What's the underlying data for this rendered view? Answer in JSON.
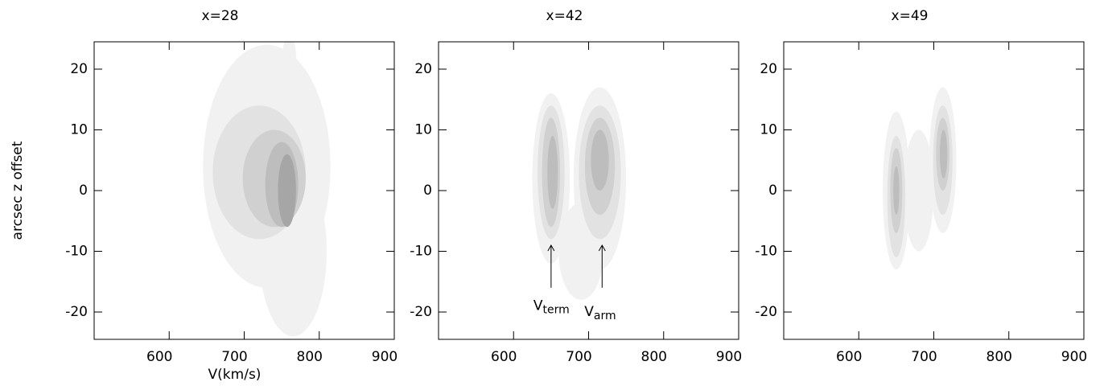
{
  "chart_data": [
    {
      "type": "contour",
      "title": "x=28",
      "xlabel": "V(km/s)",
      "ylabel": "arcsec z offset",
      "xlim": [
        500,
        900
      ],
      "ylim": [
        -24.5,
        24.5
      ],
      "xticks": [
        600,
        700,
        800,
        900
      ],
      "yticks": [
        -20,
        -10,
        0,
        10,
        20
      ],
      "levels": [
        "#f1f1f1",
        "#e2e2e2",
        "#d0d0d0",
        "#bdbdbd",
        "#a6a6a6"
      ],
      "blobs": [
        {
          "x": 730,
          "y": 4,
          "rx": 85,
          "ry": 20,
          "level": 0
        },
        {
          "x": 765,
          "y": -10,
          "rx": 45,
          "ry": 14,
          "level": 0
        },
        {
          "x": 760,
          "y": 20,
          "rx": 10,
          "ry": 6,
          "level": 0
        },
        {
          "x": 720,
          "y": 3,
          "rx": 62,
          "ry": 11,
          "level": 1
        },
        {
          "x": 740,
          "y": 2,
          "rx": 42,
          "ry": 8,
          "level": 2
        },
        {
          "x": 750,
          "y": 1,
          "rx": 22,
          "ry": 7,
          "level": 3
        },
        {
          "x": 757,
          "y": 0,
          "rx": 12,
          "ry": 6,
          "level": 4
        }
      ]
    },
    {
      "type": "contour",
      "title": "x=42",
      "xlim": [
        500,
        900
      ],
      "ylim": [
        -24.5,
        24.5
      ],
      "xticks": [
        600,
        700,
        800,
        900
      ],
      "yticks": [
        -20,
        -10,
        0,
        10,
        20
      ],
      "levels": [
        "#f1f1f1",
        "#e2e2e2",
        "#d0d0d0",
        "#bdbdbd",
        "#a6a6a6"
      ],
      "blobs": [
        {
          "x": 650,
          "y": 2,
          "rx": 25,
          "ry": 14,
          "level": 0
        },
        {
          "x": 715,
          "y": 2,
          "rx": 35,
          "ry": 15,
          "level": 0
        },
        {
          "x": 690,
          "y": -10,
          "rx": 30,
          "ry": 8,
          "level": 0
        },
        {
          "x": 650,
          "y": 3,
          "rx": 18,
          "ry": 11,
          "level": 1
        },
        {
          "x": 715,
          "y": 3,
          "rx": 28,
          "ry": 11,
          "level": 1
        },
        {
          "x": 650,
          "y": 3,
          "rx": 12,
          "ry": 9,
          "level": 2
        },
        {
          "x": 715,
          "y": 4,
          "rx": 20,
          "ry": 8,
          "level": 2
        },
        {
          "x": 652,
          "y": 3,
          "rx": 7,
          "ry": 6,
          "level": 3
        },
        {
          "x": 715,
          "y": 5,
          "rx": 12,
          "ry": 5,
          "level": 3
        }
      ],
      "annotations": [
        {
          "text": "V",
          "sub": "term",
          "x": 650,
          "y": -19,
          "arrow_from": -16,
          "arrow_to": -9
        },
        {
          "text": "V",
          "sub": "arm",
          "x": 718,
          "y": -20,
          "arrow_from": -16,
          "arrow_to": -9
        }
      ]
    },
    {
      "type": "contour",
      "title": "x=49",
      "xlim": [
        500,
        900
      ],
      "ylim": [
        -24.5,
        24.5
      ],
      "xticks": [
        600,
        700,
        800,
        900
      ],
      "yticks": [
        -20,
        -10,
        0,
        10,
        20
      ],
      "levels": [
        "#f1f1f1",
        "#e2e2e2",
        "#d0d0d0",
        "#bdbdbd",
        "#a6a6a6"
      ],
      "blobs": [
        {
          "x": 650,
          "y": 0,
          "rx": 18,
          "ry": 13,
          "level": 0
        },
        {
          "x": 712,
          "y": 5,
          "rx": 18,
          "ry": 12,
          "level": 0
        },
        {
          "x": 680,
          "y": 0,
          "rx": 20,
          "ry": 10,
          "level": 0
        },
        {
          "x": 650,
          "y": -1,
          "rx": 12,
          "ry": 10,
          "level": 1
        },
        {
          "x": 712,
          "y": 5,
          "rx": 13,
          "ry": 9,
          "level": 1
        },
        {
          "x": 650,
          "y": 0,
          "rx": 8,
          "ry": 7,
          "level": 2
        },
        {
          "x": 712,
          "y": 6,
          "rx": 9,
          "ry": 6,
          "level": 2
        },
        {
          "x": 650,
          "y": 0,
          "rx": 4,
          "ry": 4,
          "level": 3
        },
        {
          "x": 713,
          "y": 6,
          "rx": 5,
          "ry": 4,
          "level": 3
        }
      ]
    }
  ]
}
